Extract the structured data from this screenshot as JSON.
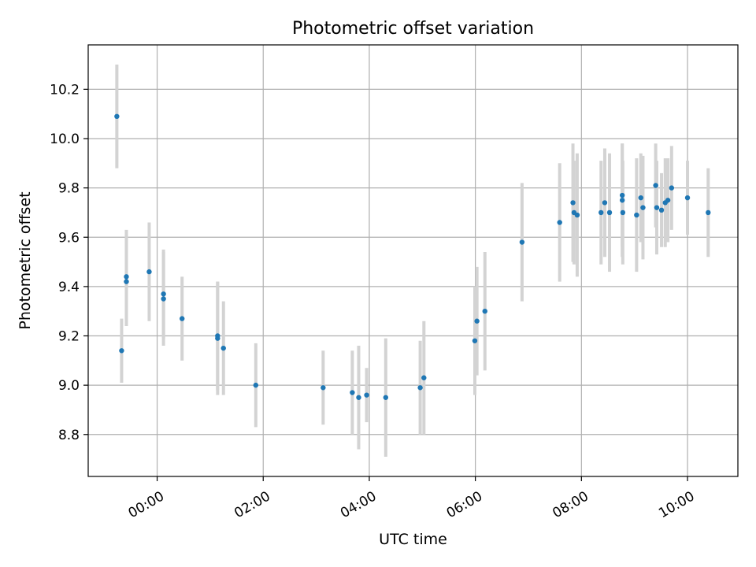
{
  "chart_data": {
    "type": "scatter",
    "title": "Photometric offset variation",
    "xlabel": "UTC time",
    "ylabel": "Photometric offset",
    "x_unit": "hours since 00:00 UTC",
    "xlim": [
      -1.3,
      10.95
    ],
    "ylim": [
      8.63,
      10.38
    ],
    "x_ticks": [
      0,
      2,
      4,
      6,
      8,
      10
    ],
    "x_tick_labels": [
      "00:00",
      "02:00",
      "04:00",
      "06:00",
      "08:00",
      "10:00"
    ],
    "y_ticks": [
      8.8,
      9.0,
      9.2,
      9.4,
      9.6,
      9.8,
      10.0,
      10.2
    ],
    "y_tick_labels": [
      "8.8",
      "9.0",
      "9.2",
      "9.4",
      "9.6",
      "9.8",
      "10.0",
      "10.2"
    ],
    "grid": true,
    "marker_color": "#1f77b4",
    "errorbar_color": "#d3d3d3",
    "points": [
      {
        "x": -0.76,
        "y": 10.09,
        "err": 0.21
      },
      {
        "x": -0.67,
        "y": 9.14,
        "err": 0.13
      },
      {
        "x": -0.58,
        "y": 9.44,
        "err": 0.19
      },
      {
        "x": -0.58,
        "y": 9.42,
        "err": 0.18
      },
      {
        "x": -0.15,
        "y": 9.46,
        "err": 0.2
      },
      {
        "x": 0.12,
        "y": 9.37,
        "err": 0.18
      },
      {
        "x": 0.12,
        "y": 9.35,
        "err": 0.19
      },
      {
        "x": 0.47,
        "y": 9.27,
        "err": 0.17
      },
      {
        "x": 1.14,
        "y": 9.2,
        "err": 0.22
      },
      {
        "x": 1.14,
        "y": 9.19,
        "err": 0.23
      },
      {
        "x": 1.25,
        "y": 9.15,
        "err": 0.19
      },
      {
        "x": 1.86,
        "y": 9.0,
        "err": 0.17
      },
      {
        "x": 3.13,
        "y": 8.99,
        "err": 0.15
      },
      {
        "x": 3.68,
        "y": 8.97,
        "err": 0.17
      },
      {
        "x": 3.8,
        "y": 8.95,
        "err": 0.21
      },
      {
        "x": 3.95,
        "y": 8.96,
        "err": 0.11
      },
      {
        "x": 4.31,
        "y": 8.95,
        "err": 0.24
      },
      {
        "x": 4.96,
        "y": 8.99,
        "err": 0.19
      },
      {
        "x": 5.03,
        "y": 9.03,
        "err": 0.23
      },
      {
        "x": 5.99,
        "y": 9.18,
        "err": 0.22
      },
      {
        "x": 6.03,
        "y": 9.26,
        "err": 0.22
      },
      {
        "x": 6.18,
        "y": 9.3,
        "err": 0.24
      },
      {
        "x": 6.88,
        "y": 9.58,
        "err": 0.24
      },
      {
        "x": 7.59,
        "y": 9.66,
        "err": 0.24
      },
      {
        "x": 7.84,
        "y": 9.74,
        "err": 0.24
      },
      {
        "x": 7.86,
        "y": 9.7,
        "err": 0.21
      },
      {
        "x": 7.92,
        "y": 9.69,
        "err": 0.25
      },
      {
        "x": 8.37,
        "y": 9.7,
        "err": 0.21
      },
      {
        "x": 8.44,
        "y": 9.74,
        "err": 0.22
      },
      {
        "x": 8.53,
        "y": 9.7,
        "err": 0.24
      },
      {
        "x": 8.77,
        "y": 9.77,
        "err": 0.21
      },
      {
        "x": 8.77,
        "y": 9.75,
        "err": 0.23
      },
      {
        "x": 8.78,
        "y": 9.7,
        "err": 0.21
      },
      {
        "x": 9.04,
        "y": 9.69,
        "err": 0.23
      },
      {
        "x": 9.12,
        "y": 9.76,
        "err": 0.18
      },
      {
        "x": 9.16,
        "y": 9.72,
        "err": 0.21
      },
      {
        "x": 9.4,
        "y": 9.81,
        "err": 0.17
      },
      {
        "x": 9.42,
        "y": 9.72,
        "err": 0.19
      },
      {
        "x": 9.51,
        "y": 9.71,
        "err": 0.15
      },
      {
        "x": 9.58,
        "y": 9.74,
        "err": 0.18
      },
      {
        "x": 9.63,
        "y": 9.75,
        "err": 0.17
      },
      {
        "x": 9.7,
        "y": 9.8,
        "err": 0.17
      },
      {
        "x": 10.0,
        "y": 9.76,
        "err": 0.15
      },
      {
        "x": 10.39,
        "y": 9.7,
        "err": 0.18
      }
    ]
  }
}
